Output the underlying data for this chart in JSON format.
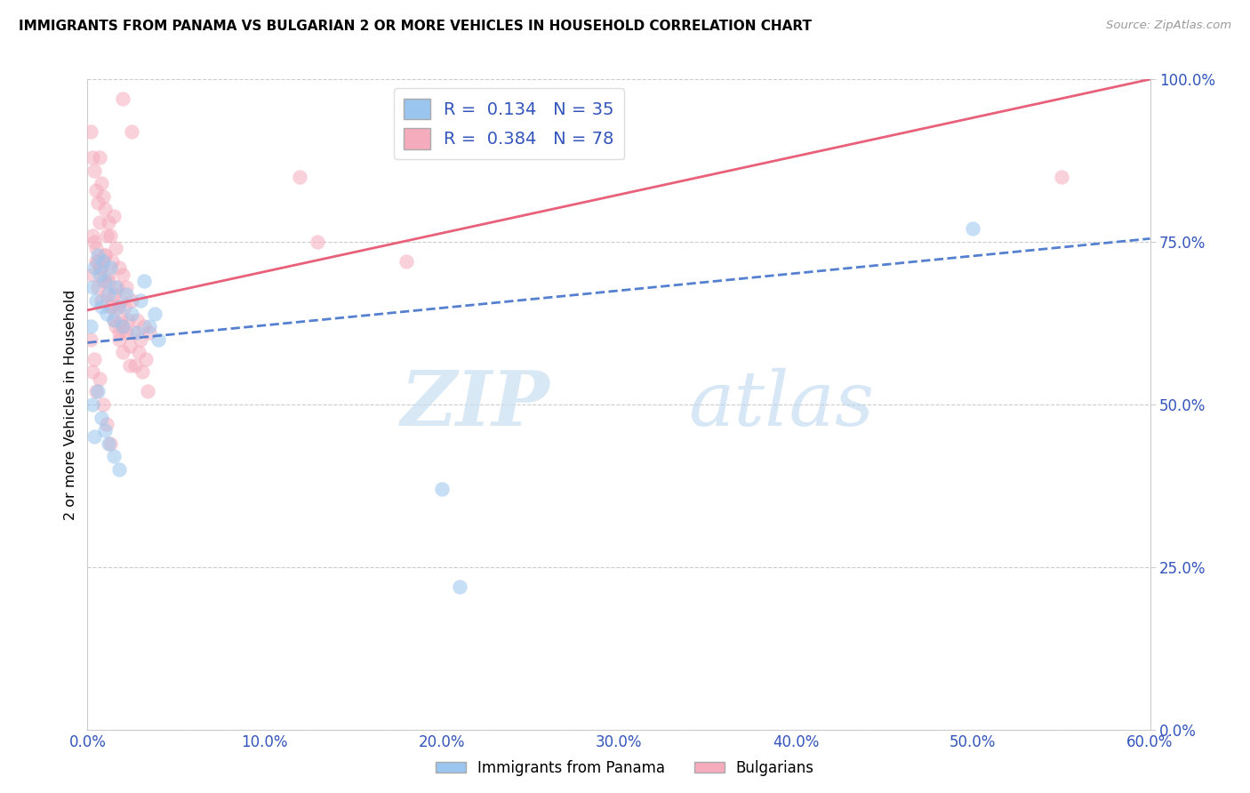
{
  "title": "IMMIGRANTS FROM PANAMA VS BULGARIAN 2 OR MORE VEHICLES IN HOUSEHOLD CORRELATION CHART",
  "source": "Source: ZipAtlas.com",
  "ylabel": "2 or more Vehicles in Household",
  "x_tick_labels": [
    "0.0%",
    "10.0%",
    "20.0%",
    "30.0%",
    "40.0%",
    "50.0%",
    "60.0%"
  ],
  "x_tick_vals": [
    0.0,
    0.1,
    0.2,
    0.3,
    0.4,
    0.5,
    0.6
  ],
  "y_tick_labels": [
    "0.0%",
    "25.0%",
    "50.0%",
    "75.0%",
    "100.0%"
  ],
  "y_tick_vals": [
    0.0,
    0.25,
    0.5,
    0.75,
    1.0
  ],
  "xlim": [
    0.0,
    0.6
  ],
  "ylim": [
    0.0,
    1.0
  ],
  "panama_fill_color": "#99C5EE",
  "bulgarian_fill_color": "#F5ACBD",
  "panama_line_color": "#5580D0",
  "bulgarian_line_color": "#E8607A",
  "panama_R": 0.134,
  "panama_N": 35,
  "bulgarian_R": 0.384,
  "bulgarian_N": 78,
  "watermark_zip": "ZIP",
  "watermark_atlas": "atlas",
  "legend_label_panama": "Immigrants from Panama",
  "legend_label_bulgarian": "Bulgarians",
  "panama_line_x0": 0.0,
  "panama_line_y0": 0.595,
  "panama_line_x1": 0.6,
  "panama_line_y1": 0.755,
  "bulgarian_line_x0": 0.0,
  "bulgarian_line_y0": 0.645,
  "bulgarian_line_x1": 0.6,
  "bulgarian_line_y1": 1.0,
  "panama_scatter_x": [
    0.002,
    0.003,
    0.004,
    0.005,
    0.006,
    0.007,
    0.008,
    0.009,
    0.01,
    0.011,
    0.012,
    0.013,
    0.015,
    0.016,
    0.018,
    0.02,
    0.022,
    0.025,
    0.028,
    0.03,
    0.032,
    0.035,
    0.038,
    0.04,
    0.003,
    0.004,
    0.006,
    0.008,
    0.01,
    0.012,
    0.015,
    0.018,
    0.2,
    0.21,
    0.5
  ],
  "panama_scatter_y": [
    0.62,
    0.68,
    0.71,
    0.66,
    0.73,
    0.7,
    0.65,
    0.72,
    0.69,
    0.64,
    0.67,
    0.71,
    0.63,
    0.68,
    0.65,
    0.62,
    0.67,
    0.64,
    0.61,
    0.66,
    0.69,
    0.62,
    0.64,
    0.6,
    0.5,
    0.45,
    0.52,
    0.48,
    0.46,
    0.44,
    0.42,
    0.4,
    0.37,
    0.22,
    0.77
  ],
  "bulgarian_scatter_x": [
    0.002,
    0.003,
    0.003,
    0.004,
    0.005,
    0.005,
    0.006,
    0.006,
    0.007,
    0.007,
    0.008,
    0.008,
    0.009,
    0.01,
    0.01,
    0.011,
    0.012,
    0.012,
    0.013,
    0.013,
    0.014,
    0.015,
    0.015,
    0.016,
    0.017,
    0.018,
    0.018,
    0.019,
    0.02,
    0.02,
    0.021,
    0.022,
    0.023,
    0.024,
    0.025,
    0.026,
    0.027,
    0.028,
    0.029,
    0.03,
    0.031,
    0.032,
    0.033,
    0.034,
    0.035,
    0.003,
    0.004,
    0.005,
    0.006,
    0.007,
    0.008,
    0.009,
    0.01,
    0.011,
    0.012,
    0.014,
    0.015,
    0.016,
    0.017,
    0.018,
    0.019,
    0.02,
    0.022,
    0.024,
    0.002,
    0.003,
    0.004,
    0.005,
    0.007,
    0.009,
    0.011,
    0.013,
    0.02,
    0.025,
    0.12,
    0.13,
    0.18,
    0.55
  ],
  "bulgarian_scatter_y": [
    0.92,
    0.88,
    0.76,
    0.86,
    0.83,
    0.74,
    0.81,
    0.72,
    0.88,
    0.78,
    0.84,
    0.71,
    0.82,
    0.8,
    0.73,
    0.76,
    0.78,
    0.69,
    0.76,
    0.65,
    0.72,
    0.79,
    0.63,
    0.74,
    0.68,
    0.71,
    0.61,
    0.66,
    0.7,
    0.62,
    0.65,
    0.68,
    0.63,
    0.59,
    0.66,
    0.61,
    0.56,
    0.63,
    0.58,
    0.6,
    0.55,
    0.62,
    0.57,
    0.52,
    0.61,
    0.7,
    0.75,
    0.72,
    0.68,
    0.71,
    0.66,
    0.69,
    0.73,
    0.67,
    0.7,
    0.65,
    0.67,
    0.62,
    0.65,
    0.6,
    0.63,
    0.58,
    0.61,
    0.56,
    0.6,
    0.55,
    0.57,
    0.52,
    0.54,
    0.5,
    0.47,
    0.44,
    0.97,
    0.92,
    0.85,
    0.75,
    0.72,
    0.85
  ]
}
